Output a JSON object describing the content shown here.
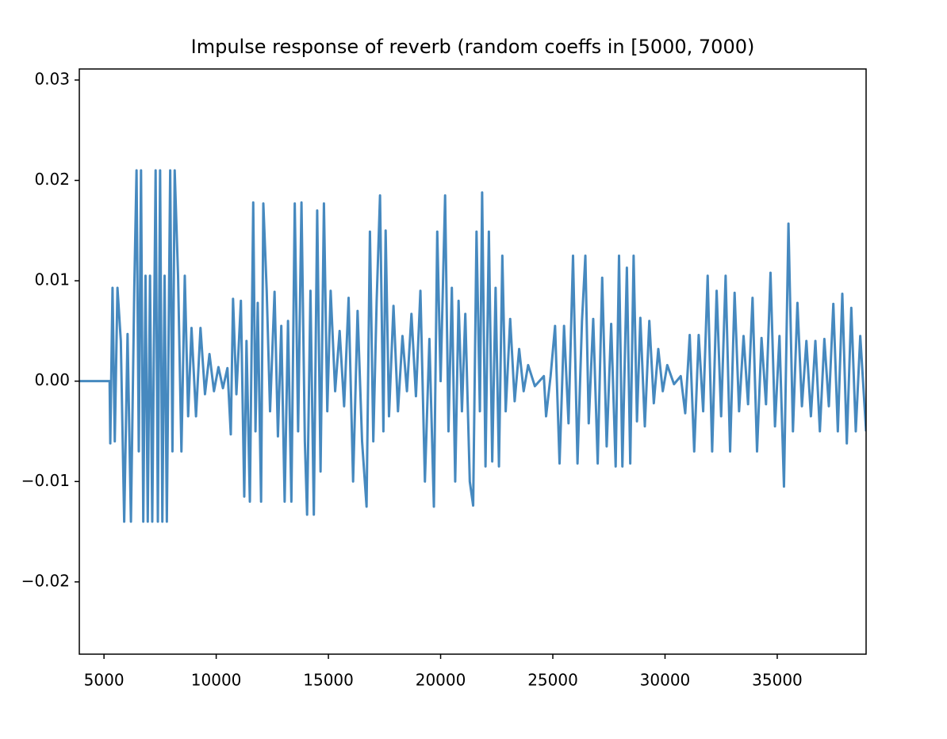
{
  "chart_data": {
    "type": "line",
    "title": "Impulse response of reverb (random coeffs in [5000, 7000)",
    "color": "#4689bf",
    "xlim": [
      3900,
      38960
    ],
    "ylim": [
      -0.0272,
      0.0311
    ],
    "xticks": [
      5000,
      10000,
      15000,
      20000,
      25000,
      30000,
      35000
    ],
    "yticks": [
      {
        "value": -0.02,
        "label": "−0.02"
      },
      {
        "value": -0.01,
        "label": "−0.01"
      },
      {
        "value": 0,
        "label": "0.00"
      },
      0.01,
      0.02,
      0.03
    ],
    "grid": false,
    "x": [
      3900,
      5250,
      5280,
      5380,
      5480,
      5600,
      5750,
      5900,
      6050,
      6200,
      6350,
      6450,
      6550,
      6650,
      6750,
      6850,
      6950,
      7050,
      7150,
      7300,
      7400,
      7500,
      7600,
      7700,
      7800,
      7950,
      8050,
      8150,
      8300,
      8450,
      8600,
      8750,
      8900,
      9100,
      9300,
      9500,
      9700,
      9900,
      10100,
      10300,
      10500,
      10650,
      10750,
      10900,
      11100,
      11250,
      11350,
      11500,
      11650,
      11750,
      11850,
      12000,
      12100,
      12250,
      12400,
      12600,
      12750,
      12900,
      13050,
      13200,
      13350,
      13500,
      13650,
      13800,
      13950,
      14050,
      14200,
      14350,
      14500,
      14650,
      14800,
      14950,
      15100,
      15300,
      15500,
      15700,
      15900,
      16100,
      16300,
      16500,
      16700,
      16850,
      17000,
      17150,
      17300,
      17450,
      17550,
      17700,
      17900,
      18100,
      18300,
      18500,
      18700,
      18900,
      19100,
      19300,
      19500,
      19700,
      19850,
      20000,
      20200,
      20350,
      20500,
      20650,
      20800,
      20950,
      21100,
      21300,
      21450,
      21600,
      21750,
      21850,
      22000,
      22150,
      22300,
      22450,
      22600,
      22750,
      22900,
      23100,
      23300,
      23500,
      23700,
      23900,
      24200,
      24600,
      24700,
      24900,
      25100,
      25300,
      25500,
      25700,
      25900,
      26100,
      26300,
      26450,
      26600,
      26800,
      27000,
      27200,
      27400,
      27600,
      27800,
      27950,
      28100,
      28300,
      28450,
      28600,
      28750,
      28900,
      29100,
      29300,
      29500,
      29700,
      29900,
      30100,
      30400,
      30700,
      30900,
      31100,
      31300,
      31500,
      31700,
      31900,
      32100,
      32300,
      32500,
      32700,
      32900,
      33100,
      33300,
      33500,
      33700,
      33900,
      34100,
      34300,
      34500,
      34700,
      34900,
      35100,
      35300,
      35500,
      35700,
      35900,
      36100,
      36300,
      36500,
      36700,
      36900,
      37100,
      37300,
      37500,
      37700,
      37900,
      38100,
      38300,
      38500,
      38700,
      38960
    ],
    "values": [
      0,
      0,
      -0.0062,
      0.0093,
      -0.006,
      0.0093,
      0.004,
      -0.014,
      0.0047,
      -0.014,
      0.0093,
      0.021,
      -0.007,
      0.021,
      -0.014,
      0.0105,
      -0.014,
      0.0105,
      -0.014,
      0.021,
      -0.014,
      0.021,
      -0.014,
      0.0105,
      -0.014,
      0.021,
      -0.007,
      0.021,
      0.0105,
      -0.007,
      0.0105,
      -0.0035,
      0.0053,
      -0.0035,
      0.0053,
      -0.0013,
      0.0027,
      -0.001,
      0.0014,
      -0.0007,
      0.0013,
      -0.0053,
      0.0082,
      -0.0013,
      0.008,
      -0.0115,
      0.004,
      -0.012,
      0.0178,
      -0.005,
      0.0078,
      -0.012,
      0.0177,
      0.009,
      -0.003,
      0.0089,
      -0.0055,
      0.0055,
      -0.012,
      0.006,
      -0.012,
      0.0177,
      -0.005,
      0.0178,
      -0.006,
      -0.0133,
      0.009,
      -0.0133,
      0.017,
      -0.009,
      0.0177,
      -0.003,
      0.009,
      -0.001,
      0.005,
      -0.0025,
      0.0083,
      -0.01,
      0.007,
      -0.006,
      -0.0125,
      0.0149,
      -0.006,
      0.008,
      0.0185,
      -0.005,
      0.015,
      -0.0035,
      0.0075,
      -0.003,
      0.0045,
      -0.001,
      0.0067,
      -0.0015,
      0.009,
      -0.01,
      0.0042,
      -0.0125,
      0.0149,
      0,
      0.0185,
      -0.005,
      0.0093,
      -0.01,
      0.008,
      -0.003,
      0.0067,
      -0.01,
      -0.0124,
      0.0149,
      -0.003,
      0.0188,
      -0.0085,
      0.0149,
      -0.008,
      0.0093,
      -0.0085,
      0.0125,
      -0.003,
      0.0062,
      -0.002,
      0.0032,
      -0.001,
      0.0016,
      -0.0005,
      0.0005,
      -0.0035,
      0.0005,
      0.0055,
      -0.0082,
      0.0055,
      -0.0042,
      0.0125,
      -0.0082,
      0.006,
      0.0125,
      -0.0042,
      0.0062,
      -0.0082,
      0.0103,
      -0.0065,
      0.0057,
      -0.0085,
      0.0125,
      -0.0085,
      0.0113,
      -0.0082,
      0.0125,
      -0.004,
      0.0063,
      -0.0045,
      0.006,
      -0.0022,
      0.0032,
      -0.001,
      0.0016,
      -0.0003,
      0.0005,
      -0.0032,
      0.0046,
      -0.007,
      0.0046,
      -0.003,
      0.0105,
      -0.007,
      0.009,
      -0.0035,
      0.0105,
      -0.007,
      0.0088,
      -0.003,
      0.0045,
      -0.0023,
      0.0083,
      -0.007,
      0.0043,
      -0.0023,
      0.0108,
      -0.0045,
      0.0045,
      -0.0105,
      0.0157,
      -0.005,
      0.0078,
      -0.0025,
      0.004,
      -0.0035,
      0.004,
      -0.005,
      0.0042,
      -0.0025,
      0.0077,
      -0.005,
      0.0087,
      -0.0062,
      0.0073,
      -0.005,
      0.0045,
      -0.005
    ]
  }
}
